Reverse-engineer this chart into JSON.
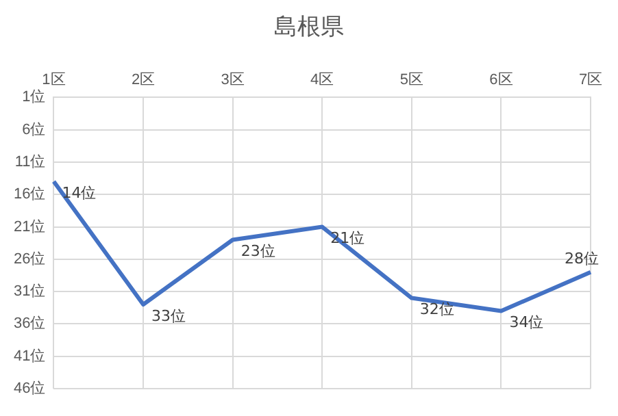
{
  "chart_data": {
    "type": "line",
    "title": "島根県",
    "categories": [
      "1区",
      "2区",
      "3区",
      "4区",
      "5区",
      "6区",
      "7区"
    ],
    "series": [
      {
        "color": "#4472c4",
        "values": [
          14,
          33,
          23,
          21,
          32,
          34,
          28
        ],
        "value_labels": [
          "14位",
          "33位",
          "23位",
          "21位",
          "32位",
          "34位",
          "28位"
        ]
      }
    ],
    "ylim": [
      46,
      1
    ],
    "yticks": [
      {
        "value": 1,
        "label": "1位"
      },
      {
        "value": 6,
        "label": "6位"
      },
      {
        "value": 11,
        "label": "11位"
      },
      {
        "value": 16,
        "label": "16位"
      },
      {
        "value": 21,
        "label": "21位"
      },
      {
        "value": 26,
        "label": "26位"
      },
      {
        "value": 31,
        "label": "31位"
      },
      {
        "value": 36,
        "label": "36位"
      },
      {
        "value": 41,
        "label": "41位"
      },
      {
        "value": 46,
        "label": "46位"
      }
    ],
    "grid": true,
    "marker": "none",
    "line_style": "solid",
    "legend": false
  }
}
